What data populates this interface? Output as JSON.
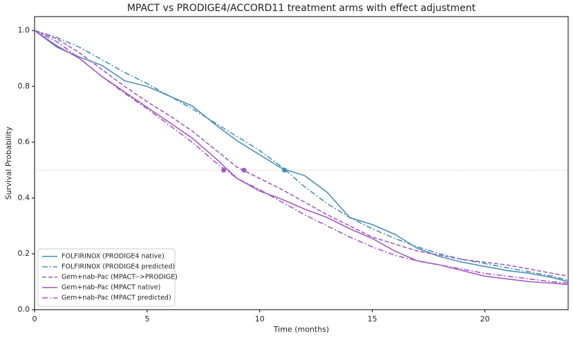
{
  "chart_data": {
    "type": "line",
    "title": "MPACT vs PRODIGE4/ACCORD11 treatment arms with effect adjustment",
    "x_label": "Time (months)",
    "y_label": "Survival Probability",
    "x": [
      0,
      1,
      2,
      3,
      4,
      5,
      6,
      7,
      8,
      9,
      10,
      11,
      12,
      13,
      14,
      15,
      16,
      17,
      18,
      19,
      20,
      21,
      22,
      23,
      23.7
    ],
    "series": [
      {
        "name": "FOLFIRINOX (PRODIGE4 native)",
        "color": "#4a8fb5",
        "linestyle": "solid",
        "median": 11.1,
        "values": [
          1.0,
          0.94,
          0.905,
          0.875,
          0.82,
          0.8,
          0.765,
          0.73,
          0.665,
          0.605,
          0.555,
          0.505,
          0.48,
          0.42,
          0.33,
          0.305,
          0.27,
          0.22,
          0.19,
          0.17,
          0.155,
          0.14,
          0.13,
          0.115,
          0.1
        ]
      },
      {
        "name": "FOLFIRINOX (PRODIGE4 predicted)",
        "color": "#4a8fb5",
        "linestyle": "dashdot",
        "values": [
          1.0,
          0.975,
          0.94,
          0.895,
          0.85,
          0.81,
          0.765,
          0.72,
          0.67,
          0.62,
          0.57,
          0.51,
          0.44,
          0.38,
          0.33,
          0.29,
          0.255,
          0.225,
          0.2,
          0.18,
          0.165,
          0.15,
          0.135,
          0.12,
          0.105
        ]
      },
      {
        "name": "Gem+nab-Pac (MPACT-->PRODIGE)",
        "color": "#a259c4",
        "linestyle": "dashed",
        "median": 9.3,
        "values": [
          1.0,
          0.97,
          0.92,
          0.86,
          0.8,
          0.745,
          0.695,
          0.64,
          0.575,
          0.51,
          0.47,
          0.43,
          0.385,
          0.34,
          0.3,
          0.26,
          0.235,
          0.21,
          0.195,
          0.18,
          0.17,
          0.16,
          0.145,
          0.13,
          0.12
        ]
      },
      {
        "name": "Gem+nab-Pac (MPACT native)",
        "color": "#a259c4",
        "linestyle": "solid",
        "median": 8.4,
        "values": [
          1.0,
          0.945,
          0.9,
          0.835,
          0.78,
          0.725,
          0.67,
          0.615,
          0.545,
          0.47,
          0.425,
          0.395,
          0.36,
          0.33,
          0.29,
          0.255,
          0.21,
          0.175,
          0.16,
          0.14,
          0.12,
          0.11,
          0.1,
          0.095,
          0.09
        ]
      },
      {
        "name": "Gem+nab-Pac (MPACT predicted)",
        "color": "#a259c4",
        "linestyle": "dashdot",
        "values": [
          1.0,
          0.96,
          0.9,
          0.835,
          0.775,
          0.72,
          0.66,
          0.6,
          0.53,
          0.47,
          0.43,
          0.385,
          0.34,
          0.3,
          0.26,
          0.225,
          0.195,
          0.175,
          0.16,
          0.145,
          0.13,
          0.12,
          0.11,
          0.1,
          0.095
        ]
      }
    ],
    "reference_line": 0.5,
    "xlim": [
      0,
      23.7
    ],
    "ylim": [
      0,
      1.05
    ],
    "xticks": [
      0,
      5,
      10,
      15,
      20
    ],
    "yticks": [
      {
        "value": 0,
        "label": "0.0"
      },
      0.2,
      0.4,
      0.6,
      0.8,
      {
        "value": 1,
        "label": "1.0"
      }
    ],
    "legend": "lower left"
  }
}
